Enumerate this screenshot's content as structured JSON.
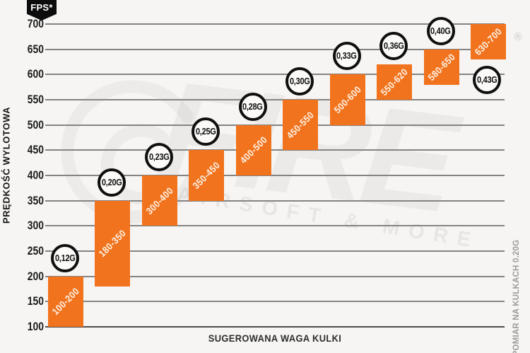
{
  "header": {
    "fps_badge": "FPS*"
  },
  "watermark": {
    "brand": "FIRE",
    "tagline": "AIRSOFT & MORE",
    "registered": "®"
  },
  "colors": {
    "bar": "#F2731D",
    "badge_border": "#0f0f0f",
    "grid": "#848484",
    "baseline": "#4c4c4c",
    "background": "#f6f5f3",
    "fps_badge_bg": "#0c0c0c"
  },
  "chart_data": {
    "type": "bar",
    "subtype": "floating-range-columns",
    "title": "",
    "unit": "FPS",
    "xlabel": "SUGEROWANA WAGA KULKI",
    "ylabel": "PRĘDKOŚĆ WYLOTOWA",
    "footnote": "*POMIAR NA KULKACH 0.20G",
    "ylim": [
      100,
      700
    ],
    "ytick_step": 50,
    "grid": true,
    "legend": "none",
    "categories": [
      "0,12G",
      "0,20G",
      "0,23G",
      "0,25G",
      "0,28G",
      "0,30G",
      "0,33G",
      "0,36G",
      "0,40G",
      "0,43G"
    ],
    "points": [
      {
        "weight": "0,12G",
        "fps_min": 100,
        "fps_max": 200,
        "range_label": "100-200",
        "badge_position": "above"
      },
      {
        "weight": "0,20G",
        "fps_min": 180,
        "fps_max": 350,
        "range_label": "180-350",
        "badge_position": "above"
      },
      {
        "weight": "0,23G",
        "fps_min": 300,
        "fps_max": 400,
        "range_label": "300-400",
        "badge_position": "above"
      },
      {
        "weight": "0,25G",
        "fps_min": 350,
        "fps_max": 450,
        "range_label": "350-450",
        "badge_position": "above"
      },
      {
        "weight": "0,28G",
        "fps_min": 400,
        "fps_max": 500,
        "range_label": "400-500",
        "badge_position": "above"
      },
      {
        "weight": "0,30G",
        "fps_min": 450,
        "fps_max": 550,
        "range_label": "450-550",
        "badge_position": "above"
      },
      {
        "weight": "0,33G",
        "fps_min": 500,
        "fps_max": 600,
        "range_label": "500-600",
        "badge_position": "above"
      },
      {
        "weight": "0,36G",
        "fps_min": 550,
        "fps_max": 620,
        "range_label": "550-620",
        "badge_position": "above"
      },
      {
        "weight": "0,40G",
        "fps_min": 580,
        "fps_max": 650,
        "range_label": "580-650",
        "badge_position": "above"
      },
      {
        "weight": "0,43G",
        "fps_min": 630,
        "fps_max": 700,
        "range_label": "630-700",
        "badge_position": "below"
      }
    ]
  }
}
